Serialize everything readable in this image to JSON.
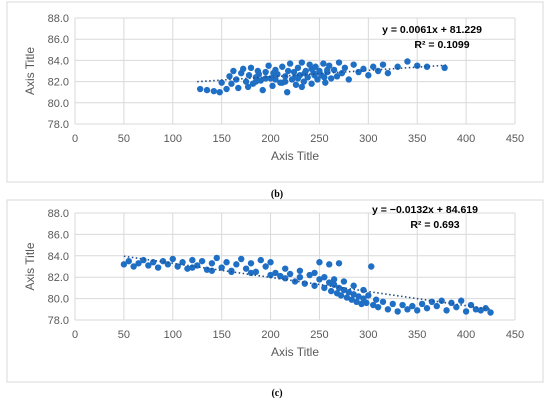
{
  "chart_data": [
    {
      "type": "scatter",
      "caption": "",
      "xlabel": "Axis Title",
      "ylabel": "Axis Title",
      "xlim": [
        0,
        450
      ],
      "ylim": [
        78,
        88
      ],
      "x_ticks": [
        "0",
        "50",
        "100",
        "150",
        "200",
        "250",
        "300",
        "350",
        "400",
        "450"
      ],
      "y_ticks": [
        "78.0",
        "80.0",
        "82.0",
        "84.0",
        "86.0",
        "88.0"
      ],
      "grid": true,
      "marker_color": "#1f6fc5",
      "trendline": {
        "slope": 0.0061,
        "intercept": 81.229,
        "x_range": [
          125,
          380
        ],
        "style": "dotted"
      },
      "equation": "y = 0.0061x + 81.229",
      "r_squared": "R² = 0.1099",
      "series": [
        {
          "points": [
            [
              128,
              81.3
            ],
            [
              135,
              81.2
            ],
            [
              142,
              81.1
            ],
            [
              148,
              81.0
            ],
            [
              150,
              81.9
            ],
            [
              155,
              81.3
            ],
            [
              158,
              82.5
            ],
            [
              160,
              81.8
            ],
            [
              162,
              83.0
            ],
            [
              165,
              82.2
            ],
            [
              167,
              81.4
            ],
            [
              170,
              82.8
            ],
            [
              172,
              83.2
            ],
            [
              175,
              82.0
            ],
            [
              177,
              81.5
            ],
            [
              178,
              82.6
            ],
            [
              180,
              83.3
            ],
            [
              182,
              81.8
            ],
            [
              185,
              82.4
            ],
            [
              187,
              83.0
            ],
            [
              190,
              82.1
            ],
            [
              192,
              81.2
            ],
            [
              195,
              82.9
            ],
            [
              198,
              83.5
            ],
            [
              200,
              82.3
            ],
            [
              202,
              81.6
            ],
            [
              205,
              83.1
            ],
            [
              207,
              82.7
            ],
            [
              210,
              81.9
            ],
            [
              212,
              83.4
            ],
            [
              215,
              82.5
            ],
            [
              217,
              81.0
            ],
            [
              220,
              83.7
            ],
            [
              222,
              82.2
            ],
            [
              224,
              82.9
            ],
            [
              226,
              81.7
            ],
            [
              228,
              83.3
            ],
            [
              230,
              82.6
            ],
            [
              232,
              83.8
            ],
            [
              234,
              82.0
            ],
            [
              236,
              83.0
            ],
            [
              238,
              82.4
            ],
            [
              240,
              83.6
            ],
            [
              242,
              81.8
            ],
            [
              244,
              82.8
            ],
            [
              246,
              83.4
            ],
            [
              248,
              82.2
            ],
            [
              250,
              83.0
            ],
            [
              252,
              82.6
            ],
            [
              254,
              83.7
            ],
            [
              256,
              81.9
            ],
            [
              258,
              82.9
            ],
            [
              260,
              83.5
            ],
            [
              262,
              82.3
            ],
            [
              265,
              83.1
            ],
            [
              268,
              82.5
            ],
            [
              270,
              83.8
            ],
            [
              273,
              82.8
            ],
            [
              276,
              83.3
            ],
            [
              280,
              82.2
            ],
            [
              285,
              83.6
            ],
            [
              290,
              82.9
            ],
            [
              295,
              83.2
            ],
            [
              300,
              82.6
            ],
            [
              305,
              83.4
            ],
            [
              310,
              83.0
            ],
            [
              315,
              83.6
            ],
            [
              320,
              82.8
            ],
            [
              330,
              83.4
            ],
            [
              340,
              83.9
            ],
            [
              350,
              83.5
            ],
            [
              360,
              83.4
            ],
            [
              378,
              83.3
            ],
            [
              185,
              82.0
            ],
            [
              195,
              82.3
            ],
            [
              205,
              82.2
            ],
            [
              215,
              82.0
            ],
            [
              225,
              82.4
            ],
            [
              235,
              82.8
            ],
            [
              245,
              82.6
            ],
            [
              255,
              82.4
            ],
            [
              212,
              81.9
            ],
            [
              228,
              82.3
            ],
            [
              242,
              83.2
            ],
            [
              218,
              83.0
            ],
            [
              258,
              83.1
            ],
            [
              232,
              81.5
            ],
            [
              203,
              82.8
            ],
            [
              188,
              82.7
            ]
          ]
        }
      ]
    },
    {
      "type": "scatter",
      "caption": "",
      "xlabel": "Axis Title",
      "ylabel": "Axis Title",
      "xlim": [
        0,
        450
      ],
      "ylim": [
        78,
        88
      ],
      "x_ticks": [
        "0",
        "50",
        "100",
        "150",
        "200",
        "250",
        "300",
        "350",
        "400",
        "450"
      ],
      "y_ticks": [
        "78.0",
        "80.0",
        "82.0",
        "84.0",
        "86.0",
        "88.0"
      ],
      "grid": true,
      "marker_color": "#1f6fc5",
      "trendline": {
        "slope": -0.0132,
        "intercept": 84.619,
        "x_range": [
          50,
          425
        ],
        "style": "dotted"
      },
      "equation": "y = −0.0132x + 84.619",
      "r_squared": "R² = 0.693",
      "series": [
        {
          "points": [
            [
              50,
              83.2
            ],
            [
              55,
              83.5
            ],
            [
              60,
              83.0
            ],
            [
              65,
              83.3
            ],
            [
              70,
              83.6
            ],
            [
              75,
              83.1
            ],
            [
              80,
              83.4
            ],
            [
              85,
              82.9
            ],
            [
              90,
              83.5
            ],
            [
              95,
              83.2
            ],
            [
              100,
              83.7
            ],
            [
              105,
              83.0
            ],
            [
              110,
              83.4
            ],
            [
              115,
              82.8
            ],
            [
              120,
              83.6
            ],
            [
              125,
              83.1
            ],
            [
              130,
              83.5
            ],
            [
              135,
              82.7
            ],
            [
              140,
              83.3
            ],
            [
              145,
              83.8
            ],
            [
              150,
              82.9
            ],
            [
              155,
              83.4
            ],
            [
              160,
              82.6
            ],
            [
              165,
              83.2
            ],
            [
              170,
              83.7
            ],
            [
              175,
              82.8
            ],
            [
              180,
              83.3
            ],
            [
              185,
              82.5
            ],
            [
              190,
              83.6
            ],
            [
              195,
              83.0
            ],
            [
              200,
              83.4
            ],
            [
              205,
              82.4
            ],
            [
              210,
              82.1
            ],
            [
              215,
              81.9
            ],
            [
              220,
              82.3
            ],
            [
              225,
              81.6
            ],
            [
              230,
              82.0
            ],
            [
              235,
              81.4
            ],
            [
              240,
              82.2
            ],
            [
              245,
              81.2
            ],
            [
              250,
              81.8
            ],
            [
              255,
              81.0
            ],
            [
              260,
              81.5
            ],
            [
              262,
              80.7
            ],
            [
              265,
              81.3
            ],
            [
              268,
              80.5
            ],
            [
              270,
              81.0
            ],
            [
              272,
              80.3
            ],
            [
              275,
              80.8
            ],
            [
              278,
              80.1
            ],
            [
              280,
              80.6
            ],
            [
              283,
              79.9
            ],
            [
              285,
              80.4
            ],
            [
              288,
              79.7
            ],
            [
              290,
              80.2
            ],
            [
              293,
              79.5
            ],
            [
              295,
              80.0
            ],
            [
              298,
              79.6
            ],
            [
              300,
              80.3
            ],
            [
              303,
              83.0
            ],
            [
              305,
              79.4
            ],
            [
              308,
              79.9
            ],
            [
              310,
              79.2
            ],
            [
              315,
              79.7
            ],
            [
              320,
              79.0
            ],
            [
              325,
              79.5
            ],
            [
              330,
              78.8
            ],
            [
              335,
              79.4
            ],
            [
              340,
              79.0
            ],
            [
              345,
              79.3
            ],
            [
              350,
              78.9
            ],
            [
              355,
              79.5
            ],
            [
              360,
              79.1
            ],
            [
              365,
              79.7
            ],
            [
              370,
              79.3
            ],
            [
              375,
              79.8
            ],
            [
              380,
              78.9
            ],
            [
              385,
              79.6
            ],
            [
              390,
              79.2
            ],
            [
              395,
              79.8
            ],
            [
              400,
              78.8
            ],
            [
              405,
              79.4
            ],
            [
              410,
              79.0
            ],
            [
              415,
              78.9
            ],
            [
              420,
              79.1
            ],
            [
              425,
              78.7
            ],
            [
              120,
              82.9
            ],
            [
              140,
              82.6
            ],
            [
              160,
              82.5
            ],
            [
              180,
              82.4
            ],
            [
              200,
              82.2
            ],
            [
              215,
              82.8
            ],
            [
              230,
              82.6
            ],
            [
              245,
              82.4
            ],
            [
              255,
              82.0
            ],
            [
              265,
              81.8
            ],
            [
              275,
              81.6
            ],
            [
              250,
              83.4
            ],
            [
              260,
              83.2
            ],
            [
              270,
              83.3
            ],
            [
              285,
              81.2
            ],
            [
              295,
              80.8
            ]
          ]
        }
      ]
    }
  ]
}
